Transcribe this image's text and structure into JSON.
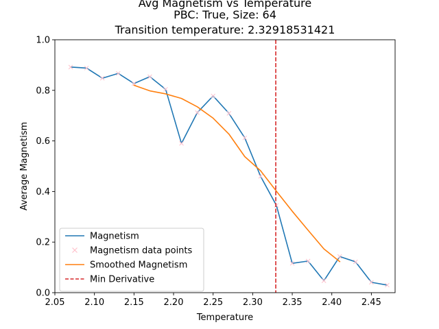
{
  "chart_data": {
    "type": "line",
    "title_lines": [
      "Avg Magnetism vs Temperature",
      "PBC: True, Size: 64",
      "Transition temperature: 2.32918531421"
    ],
    "xlabel": "Temperature",
    "ylabel": "Average Magnetism",
    "xlim": [
      2.05,
      2.48
    ],
    "ylim": [
      0.0,
      1.0
    ],
    "xticks": [
      2.05,
      2.1,
      2.15,
      2.2,
      2.25,
      2.3,
      2.35,
      2.4,
      2.45
    ],
    "xtick_labels": [
      "2.05",
      "2.10",
      "2.15",
      "2.20",
      "2.25",
      "2.30",
      "2.35",
      "2.40",
      "2.45"
    ],
    "yticks": [
      0.0,
      0.2,
      0.4,
      0.6,
      0.8,
      1.0
    ],
    "ytick_labels": [
      "0.0",
      "0.2",
      "0.4",
      "0.6",
      "0.8",
      "1.0"
    ],
    "grid": false,
    "legend_position": "lower-left",
    "series": [
      {
        "name": "Magnetism",
        "kind": "line",
        "color": "#1f77b4",
        "x": [
          2.07,
          2.09,
          2.11,
          2.13,
          2.15,
          2.17,
          2.19,
          2.21,
          2.23,
          2.25,
          2.27,
          2.29,
          2.31,
          2.33,
          2.35,
          2.37,
          2.39,
          2.41,
          2.43,
          2.45,
          2.47
        ],
        "y": [
          0.892,
          0.888,
          0.848,
          0.867,
          0.827,
          0.854,
          0.804,
          0.59,
          0.712,
          0.778,
          0.709,
          0.612,
          0.46,
          0.345,
          0.116,
          0.125,
          0.047,
          0.143,
          0.122,
          0.041,
          0.03
        ]
      },
      {
        "name": "Magnetism data points",
        "kind": "scatter",
        "marker": "x",
        "color": "#ffc0cb",
        "x": [
          2.07,
          2.09,
          2.11,
          2.13,
          2.15,
          2.17,
          2.19,
          2.21,
          2.23,
          2.25,
          2.27,
          2.29,
          2.31,
          2.33,
          2.35,
          2.37,
          2.39,
          2.41,
          2.43,
          2.45,
          2.47
        ],
        "y": [
          0.892,
          0.888,
          0.848,
          0.867,
          0.827,
          0.854,
          0.804,
          0.59,
          0.712,
          0.778,
          0.709,
          0.612,
          0.46,
          0.345,
          0.116,
          0.125,
          0.047,
          0.143,
          0.122,
          0.041,
          0.03
        ]
      },
      {
        "name": "Smoothed Magnetism",
        "kind": "line",
        "color": "#ff7f0e",
        "x": [
          2.15,
          2.17,
          2.19,
          2.21,
          2.23,
          2.25,
          2.27,
          2.29,
          2.31,
          2.33,
          2.35,
          2.37,
          2.39,
          2.41
        ],
        "y": [
          0.82,
          0.798,
          0.786,
          0.768,
          0.735,
          0.69,
          0.627,
          0.538,
          0.482,
          0.401,
          0.322,
          0.247,
          0.173,
          0.123
        ]
      }
    ],
    "vlines": [
      {
        "name": "Min Derivative",
        "x": 2.32918531421,
        "color": "#d62728",
        "style": "dashed"
      }
    ]
  }
}
